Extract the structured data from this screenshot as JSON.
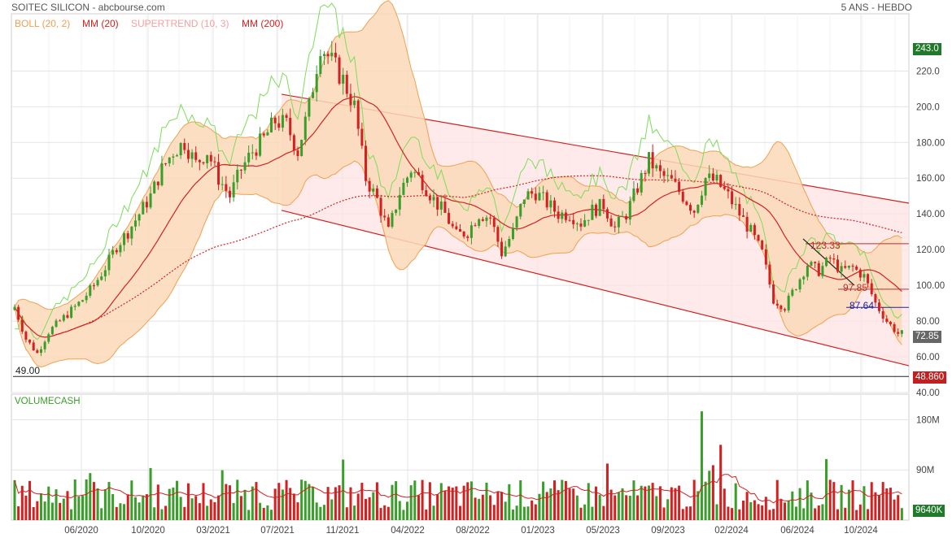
{
  "header": {
    "title": "SOITEC SILICON - abcbourse.com",
    "period": "5 ANS - HEBDO"
  },
  "legend": [
    {
      "label": "BOLL (20, 2)",
      "color": "#f0a050"
    },
    {
      "label": "MM (20)",
      "color": "#d42020"
    },
    {
      "label": "SUPERTREND (10, 3)",
      "color": "#f4a0a0"
    },
    {
      "label": "MM (200)",
      "color": "#d42020"
    }
  ],
  "colors": {
    "up": "#3a9e2a",
    "down": "#d42020",
    "boll_fill": "#fcd9b8",
    "boll_line": "#f0a050",
    "channel_fill": "#fde3e3",
    "channel_line": "#d42020",
    "supertrend": "#7ddc5a",
    "price_tag": "#666666",
    "max_tag": "#1f7a2a",
    "min_tag": "#c41e1e",
    "volume_tag": "#1f7a2a"
  },
  "price_tags": {
    "max": "243.0",
    "last": "72.85",
    "min": "48.860"
  },
  "annotations": {
    "low_label": "49.00",
    "level_123": "123.33",
    "level_97": "97.85",
    "level_87": "87.64"
  },
  "volume_panel": {
    "title": "VOLUMECASH",
    "last_tag": "9640K",
    "y_ticks": [
      "180M",
      "90M"
    ]
  },
  "chart_data": {
    "type": "candlestick",
    "title": "SOITEC SILICON",
    "y_axis_ticks": [
      220,
      200,
      180,
      160,
      140,
      120,
      100,
      80,
      60,
      40
    ],
    "y_axis_labels": [
      "220.0",
      "200.0",
      "180.00",
      "160.00",
      "140.00",
      "120.00",
      "100.00",
      "80.00",
      "60.00",
      "40.00"
    ],
    "ylim": [
      40,
      252
    ],
    "x_axis_labels": [
      "06/2020",
      "10/2020",
      "03/2021",
      "07/2021",
      "11/2021",
      "04/2022",
      "08/2022",
      "01/2023",
      "05/2023",
      "09/2023",
      "02/2024",
      "06/2024",
      "10/2024"
    ],
    "approx_close_path": [
      [
        0,
        88
      ],
      [
        3,
        70
      ],
      [
        6,
        62
      ],
      [
        9,
        74
      ],
      [
        12,
        80
      ],
      [
        15,
        86
      ],
      [
        18,
        92
      ],
      [
        21,
        100
      ],
      [
        24,
        110
      ],
      [
        27,
        122
      ],
      [
        30,
        130
      ],
      [
        33,
        140
      ],
      [
        36,
        150
      ],
      [
        39,
        165
      ],
      [
        42,
        175
      ],
      [
        45,
        180
      ],
      [
        48,
        168
      ],
      [
        51,
        175
      ],
      [
        54,
        160
      ],
      [
        57,
        150
      ],
      [
        60,
        165
      ],
      [
        63,
        175
      ],
      [
        66,
        182
      ],
      [
        69,
        192
      ],
      [
        72,
        190
      ],
      [
        75,
        175
      ],
      [
        78,
        200
      ],
      [
        81,
        235
      ],
      [
        84,
        225
      ],
      [
        87,
        215
      ],
      [
        90,
        200
      ],
      [
        93,
        160
      ],
      [
        96,
        148
      ],
      [
        99,
        130
      ],
      [
        102,
        152
      ],
      [
        105,
        165
      ],
      [
        108,
        158
      ],
      [
        111,
        148
      ],
      [
        114,
        140
      ],
      [
        117,
        128
      ],
      [
        120,
        130
      ],
      [
        123,
        140
      ],
      [
        126,
        138
      ],
      [
        129,
        118
      ],
      [
        132,
        130
      ],
      [
        135,
        150
      ],
      [
        138,
        152
      ],
      [
        141,
        146
      ],
      [
        144,
        140
      ],
      [
        147,
        140
      ],
      [
        150,
        135
      ],
      [
        153,
        142
      ],
      [
        156,
        145
      ],
      [
        159,
        132
      ],
      [
        162,
        140
      ],
      [
        165,
        155
      ],
      [
        168,
        170
      ],
      [
        171,
        162
      ],
      [
        174,
        158
      ],
      [
        177,
        150
      ],
      [
        180,
        142
      ],
      [
        183,
        160
      ],
      [
        186,
        158
      ],
      [
        189,
        150
      ],
      [
        192,
        140
      ],
      [
        195,
        130
      ],
      [
        198,
        118
      ],
      [
        201,
        92
      ],
      [
        204,
        88
      ],
      [
        207,
        100
      ],
      [
        210,
        112
      ],
      [
        213,
        108
      ],
      [
        216,
        115
      ],
      [
        219,
        108
      ],
      [
        222,
        110
      ],
      [
        225,
        105
      ],
      [
        228,
        90
      ],
      [
        231,
        80
      ],
      [
        234,
        73
      ]
    ],
    "series": [
      {
        "name": "BOLL (20, 2)"
      },
      {
        "name": "MM (20)"
      },
      {
        "name": "SUPERTREND (10, 3)"
      },
      {
        "name": "MM (200)"
      }
    ],
    "volume": {
      "title": "VOLUMECASH",
      "unit": "M",
      "ylim": [
        0,
        220
      ]
    }
  }
}
